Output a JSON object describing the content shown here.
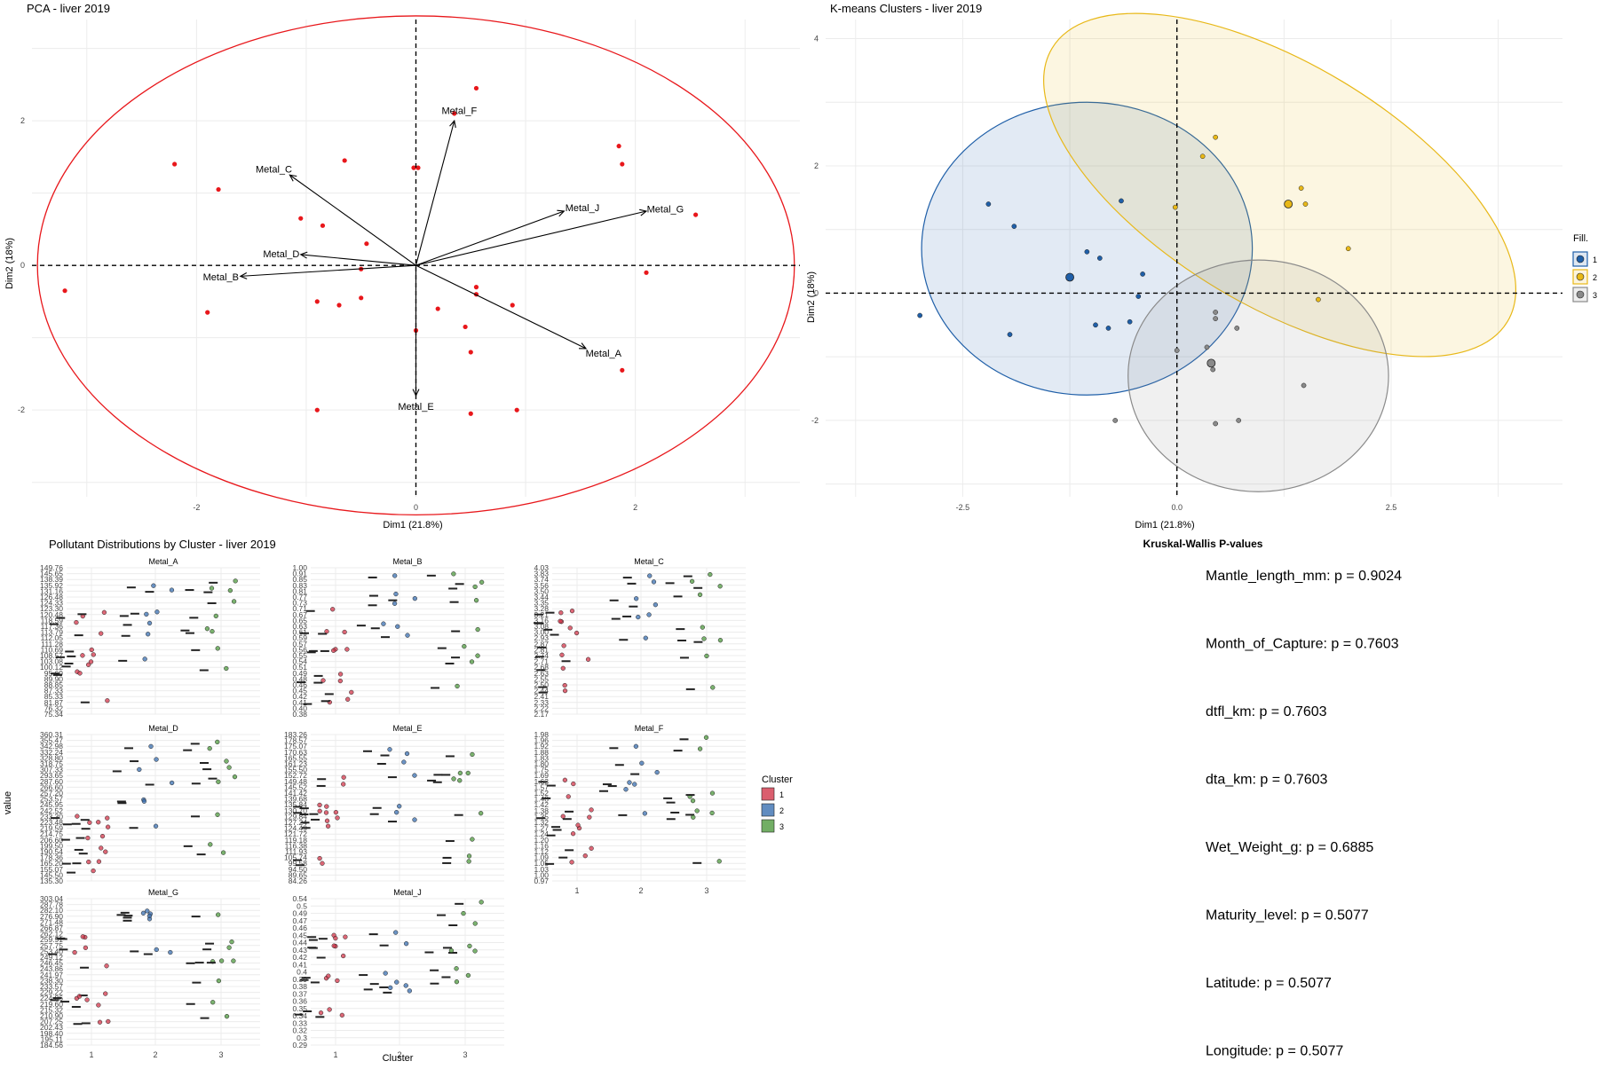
{
  "pca": {
    "title": "PCA - liver 2019",
    "xlabel": "Dim1 (21.8%)",
    "ylabel": "Dim2 (18%)",
    "x_ticks": [
      "-2",
      "0",
      "2"
    ],
    "y_ticks": [
      "2",
      "0",
      "-2"
    ],
    "circle_color": "#e8171b",
    "point_color": "#e8171b"
  },
  "kmeans": {
    "title": "K-means Clusters - liver 2019",
    "xlabel": "Dim1 (21.8%)",
    "ylabel": "Dim2 (18%)",
    "x_ticks": [
      "-2.5",
      "0.0",
      "2.5"
    ],
    "y_ticks": [
      "4",
      "2",
      "0",
      "-2"
    ],
    "legend_title": "Fill.",
    "legend_items": [
      "1",
      "2",
      "3"
    ]
  },
  "dist": {
    "title": "Pollutant Distributions by Cluster - liver 2019",
    "xlabel": "Cluster",
    "ylabel": "value",
    "legend_title": "Cluster",
    "legend_items": [
      "1",
      "2",
      "3"
    ]
  },
  "kruskal": {
    "title": "Kruskal-Wallis P-values",
    "items": [
      "Mantle_length_mm: p = 0.9024",
      "Month_of_Capture: p = 0.7603",
      "dtfl_km: p = 0.7603",
      "dta_km: p = 0.7603",
      "Wet_Weight_g: p = 0.6885",
      "Maturity_level: p = 0.5077",
      "Latitude: p = 0.5077",
      "Longitude: p = 0.5077"
    ]
  },
  "colors": {
    "cluster1": "#d1364a",
    "cluster2": "#3a6fb0",
    "cluster3": "#4f9a3f",
    "kcluster1": "#1f5fa8",
    "kcluster2": "#e8b818",
    "kcluster3": "#8a8a8a"
  },
  "chart_data": [
    {
      "type": "scatter",
      "title": "PCA - liver 2019",
      "xlabel": "Dim1 (21.8%)",
      "ylabel": "Dim2 (18%)",
      "xlim": [
        -3.5,
        3.5
      ],
      "ylim": [
        -3.2,
        3.4
      ],
      "circle_radius": 3.45,
      "points": [
        [
          -3.2,
          -0.35
        ],
        [
          -2.2,
          1.4
        ],
        [
          -1.9,
          -0.65
        ],
        [
          -1.8,
          1.05
        ],
        [
          -1.05,
          0.65
        ],
        [
          -0.9,
          -0.5
        ],
        [
          -0.9,
          -2.0
        ],
        [
          -0.7,
          -0.55
        ],
        [
          -0.65,
          1.45
        ],
        [
          -0.85,
          0.55
        ],
        [
          -0.5,
          -0.45
        ],
        [
          -0.45,
          0.3
        ],
        [
          -0.5,
          -0.05
        ],
        [
          -0.02,
          1.35
        ],
        [
          0.02,
          1.35
        ],
        [
          0.0,
          -0.9
        ],
        [
          0.2,
          -0.6
        ],
        [
          0.35,
          2.1
        ],
        [
          0.45,
          -0.85
        ],
        [
          0.5,
          -1.2
        ],
        [
          0.55,
          -0.3
        ],
        [
          0.55,
          -0.4
        ],
        [
          0.5,
          -2.05
        ],
        [
          0.55,
          2.45
        ],
        [
          0.88,
          -0.55
        ],
        [
          0.92,
          -2.0
        ],
        [
          1.85,
          1.65
        ],
        [
          1.88,
          1.4
        ],
        [
          1.88,
          -1.45
        ],
        [
          2.1,
          -0.1
        ],
        [
          2.55,
          0.7
        ]
      ],
      "arrows": [
        {
          "name": "Metal_A",
          "x": 1.55,
          "y": -1.15
        },
        {
          "name": "Metal_B",
          "x": -1.6,
          "y": -0.15
        },
        {
          "name": "Metal_C",
          "x": -1.15,
          "y": 1.25
        },
        {
          "name": "Metal_D",
          "x": -1.05,
          "y": 0.15
        },
        {
          "name": "Metal_E",
          "x": 0.0,
          "y": -1.8
        },
        {
          "name": "Metal_F",
          "x": 0.35,
          "y": 2.0
        },
        {
          "name": "Metal_G",
          "x": 2.1,
          "y": 0.75
        },
        {
          "name": "Metal_J",
          "x": 1.35,
          "y": 0.75
        }
      ]
    },
    {
      "type": "scatter",
      "title": "K-means Clusters - liver 2019",
      "xlabel": "Dim1 (21.8%)",
      "ylabel": "Dim2 (18%)",
      "xlim": [
        -4.1,
        4.5
      ],
      "ylim": [
        -3.2,
        4.3
      ],
      "series": [
        {
          "name": "1",
          "centroid": [
            -1.25,
            0.25
          ],
          "ellipse": {
            "cx": -1.05,
            "cy": 0.7,
            "rx": 1.93,
            "ry": 2.3,
            "angle": 0
          },
          "points": [
            [
              -3.0,
              -0.35
            ],
            [
              -2.2,
              1.4
            ],
            [
              -1.95,
              -0.65
            ],
            [
              -1.9,
              1.05
            ],
            [
              -1.05,
              0.65
            ],
            [
              -0.9,
              0.55
            ],
            [
              -0.95,
              -0.5
            ],
            [
              -0.8,
              -0.55
            ],
            [
              -0.65,
              1.45
            ],
            [
              -0.55,
              -0.45
            ],
            [
              -0.4,
              0.3
            ],
            [
              -0.45,
              -0.05
            ]
          ]
        },
        {
          "name": "2",
          "centroid": [
            1.3,
            1.4
          ],
          "ellipse": {
            "cx": 1.2,
            "cy": 1.7,
            "rx": 3.1,
            "ry": 1.9,
            "angle": 31
          },
          "points": [
            [
              -0.02,
              1.35
            ],
            [
              0.3,
              2.15
            ],
            [
              0.45,
              2.45
            ],
            [
              1.45,
              1.65
            ],
            [
              1.5,
              1.4
            ],
            [
              2.0,
              0.7
            ],
            [
              1.65,
              -0.1
            ]
          ]
        },
        {
          "name": "3",
          "centroid": [
            0.4,
            -1.1
          ],
          "ellipse": {
            "cx": 0.95,
            "cy": -1.3,
            "rx": 1.52,
            "ry": 1.82,
            "angle": 0
          },
          "points": [
            [
              0.0,
              -0.9
            ],
            [
              0.35,
              -0.85
            ],
            [
              0.42,
              -1.2
            ],
            [
              0.45,
              -0.3
            ],
            [
              0.45,
              -0.4
            ],
            [
              0.7,
              -0.55
            ],
            [
              0.45,
              -2.05
            ],
            [
              0.72,
              -2.0
            ],
            [
              -0.72,
              -2.0
            ],
            [
              1.48,
              -1.45
            ]
          ]
        }
      ]
    },
    {
      "type": "scatter",
      "title": "Pollutant Distributions by Cluster - liver 2019",
      "xlabel": "Cluster",
      "ylabel": "value",
      "categories": [
        "1",
        "2",
        "3"
      ],
      "facets": [
        {
          "name": "Metal_A",
          "ticks": [
            "149.76",
            "145.65",
            "138.39",
            "135.92",
            "131.16",
            "126.48",
            "124.33",
            "123.30",
            "120.48",
            "118.59",
            "117.36",
            "113.79",
            "112.05",
            "111.28",
            "110.69",
            "108.57",
            "103.08",
            "100.12",
            "95.69",
            "89.90",
            "88.85",
            "87.33",
            "85.33",
            "81.87",
            "76.32",
            "75.34"
          ]
        },
        {
          "name": "Metal_B",
          "ticks": [
            "1.00",
            "0.91",
            "0.85",
            "0.83",
            "0.81",
            "0.77",
            "0.73",
            "0.71",
            "0.67",
            "0.65",
            "0.63",
            "0.61",
            "0.59",
            "0.57",
            "0.56",
            "0.55",
            "0.54",
            "0.51",
            "0.49",
            "0.48",
            "0.46",
            "0.45",
            "0.42",
            "0.41",
            "0.40",
            "0.38"
          ]
        },
        {
          "name": "Metal_C",
          "ticks": [
            "4.03",
            "3.83",
            "3.74",
            "3.56",
            "3.50",
            "3.44",
            "3.35",
            "3.28",
            "3.21",
            "3.16",
            "3.08",
            "3.00",
            "2.93",
            "2.87",
            "2.81",
            "2.74",
            "2.71",
            "2.68",
            "2.63",
            "2.55",
            "2.50",
            "2.44",
            "2.41",
            "2.33",
            "2.22",
            "2.17"
          ]
        },
        {
          "name": "Metal_D",
          "ticks": [
            "360.31",
            "355.47",
            "342.98",
            "332.24",
            "328.80",
            "318.75",
            "307.33",
            "293.65",
            "287.60",
            "266.60",
            "257.20",
            "253.57",
            "245.95",
            "242.52",
            "233.30",
            "223.48",
            "219.59",
            "214.75",
            "206.60",
            "199.50",
            "190.54",
            "178.36",
            "165.20",
            "155.07",
            "145.50",
            "135.30"
          ]
        },
        {
          "name": "Metal_E",
          "ticks": [
            "183.26",
            "178.57",
            "175.07",
            "170.63",
            "165.55",
            "161.23",
            "155.50",
            "152.72",
            "149.48",
            "145.52",
            "141.42",
            "139.68",
            "135.84",
            "130.70",
            "129.84",
            "127.24",
            "124.49",
            "121.72",
            "119.18",
            "116.38",
            "111.93",
            "105.74",
            "99.58",
            "94.50",
            "89.65",
            "84.26"
          ]
        },
        {
          "name": "Metal_F",
          "ticks": [
            "1.98",
            "1.96",
            "1.92",
            "1.88",
            "1.83",
            "1.80",
            "1.75",
            "1.69",
            "1.63",
            "1.57",
            "1.52",
            "1.48",
            "1.42",
            "1.38",
            "1.35",
            "1.32",
            "1.27",
            "1.24",
            "1.20",
            "1.16",
            "1.12",
            "1.09",
            "1.05",
            "1.03",
            "1.00",
            "0.97"
          ]
        },
        {
          "name": "Metal_G",
          "ticks": [
            "303.04",
            "287.78",
            "282.10",
            "276.90",
            "271.48",
            "266.87",
            "262.12",
            "259.91",
            "257.75",
            "253.40",
            "249.12",
            "246.45",
            "243.86",
            "241.97",
            "238.30",
            "233.57",
            "229.22",
            "224.86",
            "219.60",
            "215.32",
            "210.90",
            "207.25",
            "202.43",
            "198.40",
            "195.11",
            "184.56"
          ]
        },
        {
          "name": "Metal_J",
          "ticks": [
            "0.54",
            "0.5",
            "0.49",
            "0.47",
            "0.46",
            "0.45",
            "0.44",
            "0.43",
            "0.42",
            "0.41",
            "0.4",
            "0.39",
            "0.38",
            "0.37",
            "0.36",
            "0.35",
            "0.34",
            "0.33",
            "0.32",
            "0.3",
            "0.29"
          ]
        }
      ]
    }
  ]
}
